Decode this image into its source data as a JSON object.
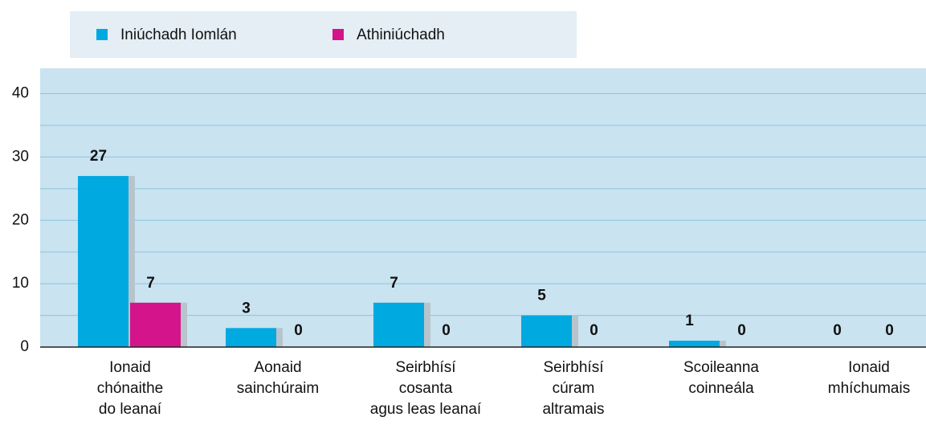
{
  "chart_data": {
    "type": "bar",
    "categories": [
      [
        "Ionaid",
        "chónaithe",
        "do leanaí"
      ],
      [
        "Aonaid",
        "sainchúraim"
      ],
      [
        "Seirbhísí",
        "cosanta",
        "agus leas leanaí"
      ],
      [
        "Seirbhísí",
        "cúram",
        "altramais"
      ],
      [
        "Scoileanna",
        "coinneála"
      ],
      [
        "Ionaid",
        "mhíchumais"
      ]
    ],
    "series": [
      {
        "name": "Iniúchadh Iomlán",
        "color": "#00a9e0",
        "values": [
          27,
          3,
          7,
          5,
          1,
          0
        ]
      },
      {
        "name": "Athiniúchadh",
        "color": "#d4148a",
        "values": [
          7,
          0,
          0,
          0,
          0,
          0
        ]
      }
    ],
    "ylim": [
      0,
      44
    ],
    "yticks": [
      0,
      10,
      20,
      30,
      40
    ],
    "minor_yticks": [
      5,
      15,
      25,
      35
    ],
    "grid": true,
    "legend": "top"
  }
}
